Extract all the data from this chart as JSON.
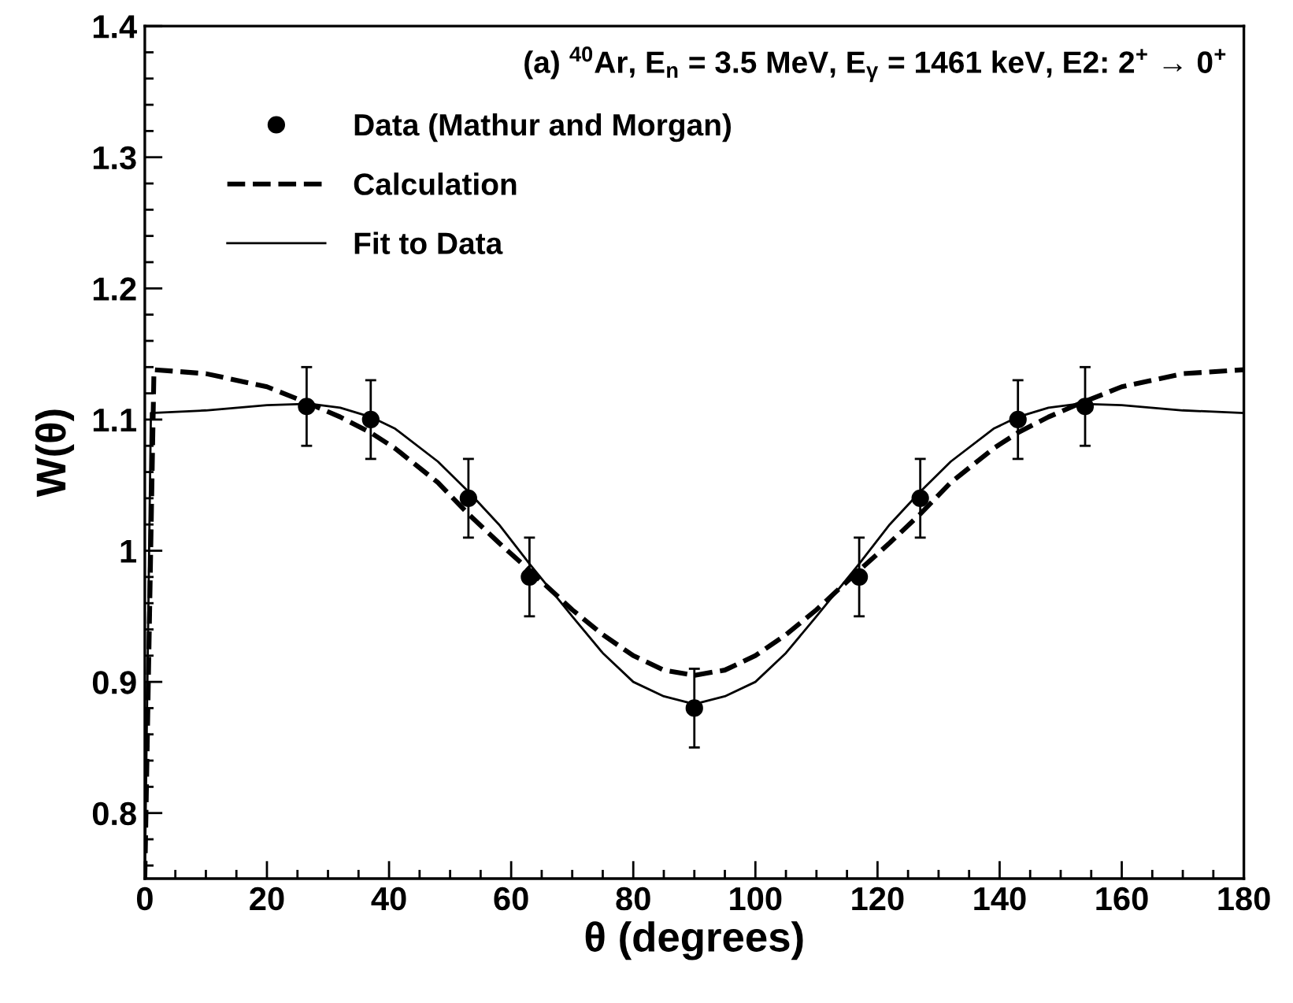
{
  "chart_data": {
    "type": "line",
    "title": "(a) $^{40}$Ar, E$_{n}$ = 3.5 MeV, E$_{γ}$ = 1461 keV, E2: 2$^{+}$ → 0$^{+}$",
    "xlabel": "θ (degrees)",
    "ylabel": "W(θ)",
    "xlim": [
      0,
      180
    ],
    "ylim": [
      0.75,
      1.4
    ],
    "xticks": [
      0,
      20,
      40,
      60,
      80,
      100,
      120,
      140,
      160,
      180
    ],
    "yticks": [
      0.8,
      0.9,
      1,
      1.1,
      1.2,
      1.3,
      1.4
    ],
    "grid": false,
    "legend": "top",
    "series": [
      {
        "name": "Data (Mathur and Morgan)",
        "type": "scatter",
        "marker": "circle",
        "color": "#000000",
        "x": [
          26.5,
          37,
          53,
          63,
          90,
          117,
          127,
          143,
          154
        ],
        "values": [
          1.11,
          1.1,
          1.04,
          0.98,
          0.88,
          0.98,
          1.04,
          1.1,
          1.11
        ],
        "errors": [
          0.03,
          0.03,
          0.03,
          0.03,
          0.03,
          0.03,
          0.03,
          0.03,
          0.03
        ]
      },
      {
        "name": "Calculation",
        "line_style": "dashed",
        "color": "#000000",
        "x": [
          0,
          1.5,
          10,
          20,
          27,
          32,
          37,
          41,
          48,
          53,
          58,
          63,
          70,
          75,
          80,
          85,
          90,
          95,
          100,
          105,
          110,
          117,
          122,
          127,
          132,
          139,
          143,
          148,
          153,
          160,
          170,
          180
        ],
        "values": [
          0.75,
          1.138,
          1.135,
          1.125,
          1.112,
          1.102,
          1.09,
          1.078,
          1.052,
          1.028,
          1.006,
          0.985,
          0.955,
          0.936,
          0.92,
          0.909,
          0.905,
          0.909,
          0.92,
          0.936,
          0.955,
          0.985,
          1.006,
          1.028,
          1.052,
          1.078,
          1.09,
          1.102,
          1.112,
          1.125,
          1.135,
          1.138
        ]
      },
      {
        "name": "Fit to Data",
        "line_style": "solid",
        "color": "#000000",
        "x": [
          0,
          1,
          10,
          20,
          27,
          32,
          37,
          41,
          48,
          53,
          58,
          63,
          70,
          75,
          80,
          85,
          90,
          95,
          100,
          105,
          110,
          117,
          122,
          127,
          132,
          139,
          143,
          148,
          153,
          160,
          170,
          180
        ],
        "values": [
          0.75,
          1.105,
          1.107,
          1.111,
          1.112,
          1.109,
          1.102,
          1.093,
          1.068,
          1.045,
          1.02,
          0.99,
          0.95,
          0.922,
          0.9,
          0.889,
          0.883,
          0.889,
          0.9,
          0.922,
          0.95,
          0.99,
          1.02,
          1.045,
          1.068,
          1.093,
          1.102,
          1.109,
          1.112,
          1.111,
          1.107,
          1.105
        ]
      }
    ]
  }
}
